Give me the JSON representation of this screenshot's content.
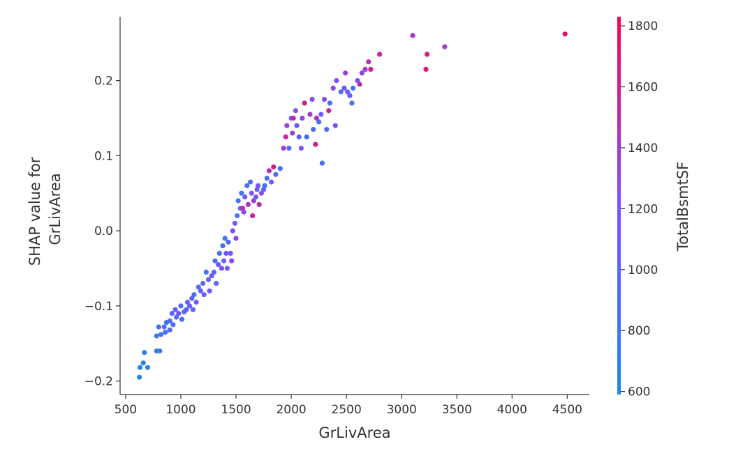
{
  "chart_data": {
    "type": "scatter",
    "title": "",
    "xlabel": "GrLivArea",
    "ylabel_lines": [
      "SHAP value for",
      "GrLivArea"
    ],
    "xlim": [
      450,
      4700
    ],
    "ylim": [
      -0.218,
      0.285
    ],
    "x_ticks": [
      500,
      1000,
      1500,
      2000,
      2500,
      3000,
      3500,
      4000,
      4500
    ],
    "x_tick_labels": [
      "500",
      "1000",
      "1500",
      "2000",
      "2500",
      "3000",
      "3500",
      "4000",
      "4500"
    ],
    "y_ticks": [
      -0.2,
      -0.1,
      0.0,
      0.1,
      0.2
    ],
    "y_tick_labels": [
      "−0.2",
      "−0.1",
      "0.0",
      "0.1",
      "0.2"
    ],
    "colorbar": {
      "label": "TotalBsmtSF",
      "range": [
        590,
        1830
      ],
      "ticks": [
        600,
        800,
        1000,
        1200,
        1400,
        1600,
        1800
      ],
      "tick_labels": [
        "600",
        "800",
        "1000",
        "1200",
        "1400",
        "1600",
        "1800"
      ],
      "color_low": "#1e88e5",
      "color_mid": "#7c52ff",
      "color_high": "#ff0052"
    },
    "grid": false,
    "points": [
      [
        625,
        -0.195,
        640
      ],
      [
        630,
        -0.182,
        650
      ],
      [
        660,
        -0.176,
        700
      ],
      [
        670,
        -0.162,
        680
      ],
      [
        700,
        -0.182,
        660
      ],
      [
        780,
        -0.16,
        700
      ],
      [
        810,
        -0.16,
        720
      ],
      [
        780,
        -0.14,
        760
      ],
      [
        800,
        -0.128,
        800
      ],
      [
        820,
        -0.138,
        820
      ],
      [
        850,
        -0.128,
        900
      ],
      [
        860,
        -0.135,
        850
      ],
      [
        870,
        -0.122,
        760
      ],
      [
        900,
        -0.12,
        880
      ],
      [
        900,
        -0.132,
        950
      ],
      [
        920,
        -0.11,
        1000
      ],
      [
        930,
        -0.125,
        900
      ],
      [
        950,
        -0.105,
        1050
      ],
      [
        960,
        -0.115,
        920
      ],
      [
        980,
        -0.11,
        1100
      ],
      [
        1000,
        -0.1,
        900
      ],
      [
        1010,
        -0.118,
        860
      ],
      [
        1030,
        -0.108,
        950
      ],
      [
        1050,
        -0.105,
        1000
      ],
      [
        1060,
        -0.095,
        1100
      ],
      [
        1080,
        -0.1,
        1050
      ],
      [
        1100,
        -0.09,
        980
      ],
      [
        1110,
        -0.105,
        1020
      ],
      [
        1120,
        -0.085,
        900
      ],
      [
        1140,
        -0.095,
        1150
      ],
      [
        1160,
        -0.075,
        900
      ],
      [
        1180,
        -0.08,
        1000
      ],
      [
        1200,
        -0.07,
        1100
      ],
      [
        1210,
        -0.085,
        1050
      ],
      [
        1230,
        -0.055,
        800
      ],
      [
        1250,
        -0.065,
        950
      ],
      [
        1260,
        -0.08,
        1150
      ],
      [
        1280,
        -0.06,
        1200
      ],
      [
        1300,
        -0.055,
        900
      ],
      [
        1310,
        -0.04,
        850
      ],
      [
        1320,
        -0.07,
        1000
      ],
      [
        1340,
        -0.045,
        1100
      ],
      [
        1350,
        -0.03,
        900
      ],
      [
        1370,
        -0.05,
        1250
      ],
      [
        1380,
        -0.02,
        800
      ],
      [
        1390,
        -0.04,
        1050
      ],
      [
        1400,
        -0.01,
        820
      ],
      [
        1410,
        -0.03,
        1150
      ],
      [
        1420,
        -0.05,
        1100
      ],
      [
        1430,
        -0.015,
        900
      ],
      [
        1450,
        -0.03,
        1200
      ],
      [
        1460,
        -0.04,
        1300
      ],
      [
        1470,
        0.0,
        1250
      ],
      [
        1490,
        0.01,
        1150
      ],
      [
        1500,
        -0.01,
        1300
      ],
      [
        1510,
        0.02,
        880
      ],
      [
        1520,
        0.04,
        820
      ],
      [
        1540,
        0.03,
        1000
      ],
      [
        1550,
        0.05,
        850
      ],
      [
        1560,
        0.03,
        1500
      ],
      [
        1570,
        0.025,
        1300
      ],
      [
        1580,
        0.045,
        1100
      ],
      [
        1600,
        0.06,
        900
      ],
      [
        1610,
        0.035,
        1450
      ],
      [
        1630,
        0.065,
        850
      ],
      [
        1640,
        0.05,
        1200
      ],
      [
        1650,
        0.02,
        1600
      ],
      [
        1660,
        0.04,
        1350
      ],
      [
        1680,
        0.045,
        1100
      ],
      [
        1690,
        0.055,
        1000
      ],
      [
        1700,
        0.06,
        1200
      ],
      [
        1710,
        0.035,
        1500
      ],
      [
        1730,
        0.05,
        1250
      ],
      [
        1750,
        0.055,
        1100
      ],
      [
        1760,
        0.06,
        800
      ],
      [
        1780,
        0.07,
        900
      ],
      [
        1800,
        0.08,
        1500
      ],
      [
        1820,
        0.065,
        1100
      ],
      [
        1840,
        0.085,
        1600
      ],
      [
        1860,
        0.075,
        900
      ],
      [
        1900,
        0.083,
        850
      ],
      [
        1930,
        0.11,
        1400
      ],
      [
        1950,
        0.125,
        1550
      ],
      [
        1960,
        0.14,
        1350
      ],
      [
        1980,
        0.11,
        900
      ],
      [
        2000,
        0.15,
        1150
      ],
      [
        2010,
        0.13,
        1350
      ],
      [
        2020,
        0.15,
        1500
      ],
      [
        2040,
        0.16,
        1250
      ],
      [
        2050,
        0.14,
        1100
      ],
      [
        2070,
        0.125,
        950
      ],
      [
        2090,
        0.11,
        1150
      ],
      [
        2100,
        0.15,
        1300
      ],
      [
        2120,
        0.17,
        1600
      ],
      [
        2140,
        0.125,
        850
      ],
      [
        2170,
        0.155,
        1400
      ],
      [
        2190,
        0.175,
        1250
      ],
      [
        2200,
        0.135,
        880
      ],
      [
        2220,
        0.115,
        1600
      ],
      [
        2230,
        0.15,
        1450
      ],
      [
        2250,
        0.145,
        900
      ],
      [
        2270,
        0.155,
        1200
      ],
      [
        2280,
        0.09,
        800
      ],
      [
        2300,
        0.175,
        1300
      ],
      [
        2320,
        0.135,
        900
      ],
      [
        2340,
        0.16,
        1600
      ],
      [
        2350,
        0.17,
        900
      ],
      [
        2380,
        0.19,
        1300
      ],
      [
        2400,
        0.14,
        1150
      ],
      [
        2410,
        0.2,
        1250
      ],
      [
        2450,
        0.185,
        900
      ],
      [
        2480,
        0.19,
        1100
      ],
      [
        2490,
        0.21,
        1350
      ],
      [
        2510,
        0.185,
        1200
      ],
      [
        2530,
        0.18,
        1000
      ],
      [
        2550,
        0.17,
        800
      ],
      [
        2560,
        0.19,
        820
      ],
      [
        2600,
        0.2,
        1250
      ],
      [
        2620,
        0.195,
        1500
      ],
      [
        2640,
        0.21,
        1300
      ],
      [
        2670,
        0.215,
        1400
      ],
      [
        2700,
        0.225,
        1450
      ],
      [
        2720,
        0.215,
        1600
      ],
      [
        2800,
        0.235,
        1550
      ],
      [
        3100,
        0.26,
        1400
      ],
      [
        3220,
        0.215,
        1700
      ],
      [
        3230,
        0.235,
        1650
      ],
      [
        3390,
        0.245,
        1350
      ],
      [
        4480,
        0.262,
        1750
      ]
    ]
  }
}
